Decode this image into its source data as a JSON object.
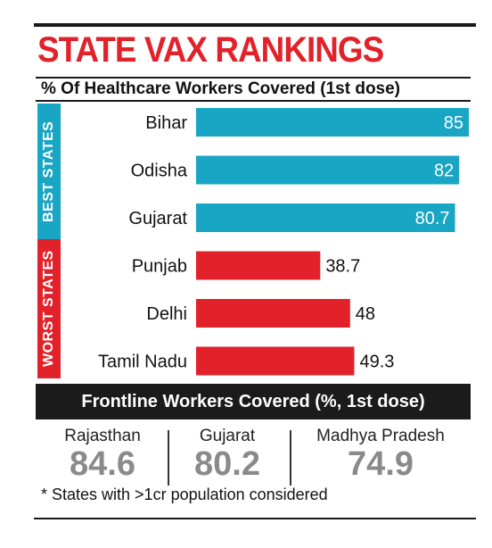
{
  "title": "STATE VAX RANKINGS",
  "subtitle": "% Of Healthcare Workers Covered (1st dose)",
  "group_labels": {
    "best": "BEST STATES",
    "worst": "WORST STATES"
  },
  "colors": {
    "best": "#19a5c4",
    "worst": "#e2222b",
    "accent": "#e2222b"
  },
  "chart_data": {
    "type": "bar",
    "orientation": "horizontal",
    "title": "STATE VAX RANKINGS",
    "subtitle": "% Of Healthcare Workers Covered (1st dose)",
    "categories": [
      "Bihar",
      "Odisha",
      "Gujarat",
      "Punjab",
      "Delhi",
      "Tamil Nadu"
    ],
    "values": [
      85,
      82,
      80.7,
      38.7,
      48,
      49.3
    ],
    "value_labels": [
      "85",
      "82",
      "80.7",
      "38.7",
      "48",
      "49.3"
    ],
    "groups": [
      "best",
      "best",
      "best",
      "worst",
      "worst",
      "worst"
    ],
    "xlim": [
      0,
      85
    ]
  },
  "frontline": {
    "heading": "Frontline Workers Covered (%, 1st dose)",
    "items": [
      {
        "state": "Rajasthan",
        "value": "84.6"
      },
      {
        "state": "Gujarat",
        "value": "80.2"
      },
      {
        "state": "Madhya Pradesh",
        "value": "74.9"
      }
    ]
  },
  "footnote": "* States with >1cr population considered"
}
